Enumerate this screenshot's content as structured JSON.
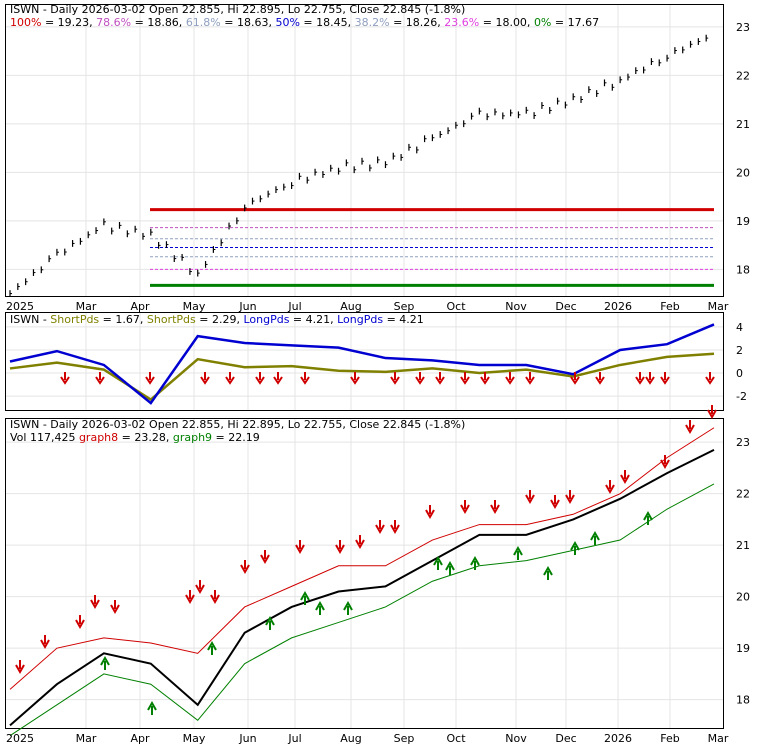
{
  "panel1": {
    "title": "ISWN - Daily 2026-03-02 Open 22.855, Hi 22.895, Lo 22.755, Close 22.845 (-1.8%)",
    "fib_levels": [
      {
        "label": "100%",
        "value_text": " = 19.23, ",
        "value": 19.23,
        "color": "#d00000",
        "dash": false
      },
      {
        "label": "78.6%",
        "value_text": " = 18.86, ",
        "value": 18.86,
        "color": "#c050c0",
        "dash": true
      },
      {
        "label": "61.8%",
        "value_text": " = 18.63, ",
        "value": 18.63,
        "color": "#90a0c0",
        "dash": true
      },
      {
        "label": "50%",
        "value_text": " = 18.45, ",
        "value": 18.45,
        "color": "#0000d0",
        "dash": true
      },
      {
        "label": "38.2%",
        "value_text": " = 18.26, ",
        "value": 18.26,
        "color": "#90a0c0",
        "dash": true
      },
      {
        "label": "23.6%",
        "value_text": " = 18.00, ",
        "value": 18.0,
        "color": "#e040e0",
        "dash": true
      },
      {
        "label": "0%",
        "value_text": " = 17.67",
        "value": 17.67,
        "color": "#008000",
        "dash": false
      }
    ],
    "yticks": [
      "18",
      "19",
      "20",
      "21",
      "22",
      "23"
    ]
  },
  "panel2": {
    "title_prefix": "ISWN - ",
    "items": [
      {
        "text": "ShortPds",
        "color": "#808000"
      },
      {
        "text": " = 1.67, ",
        "color": "#000000"
      },
      {
        "text": "ShortPds",
        "color": "#808000"
      },
      {
        "text": " = 2.29, ",
        "color": "#000000"
      },
      {
        "text": "LongPds",
        "color": "#0000d0"
      },
      {
        "text": " = 4.21, ",
        "color": "#000000"
      },
      {
        "text": "LongPds",
        "color": "#0000d0"
      },
      {
        "text": " = 4.21",
        "color": "#000000"
      }
    ],
    "yticks": [
      "-2",
      "0",
      "2",
      "4"
    ]
  },
  "panel3": {
    "title": "ISWN - Daily 2026-03-02 Open 22.855, Hi 22.895, Lo 22.755, Close 22.845 (-1.8%)",
    "vol_text": "Vol 117,425 ",
    "graph8_label": "graph8",
    "graph8_value": " = 23.28, ",
    "graph9_label": "graph9",
    "graph9_value": " = 22.19",
    "yticks": [
      "18",
      "19",
      "20",
      "21",
      "22",
      "23"
    ]
  },
  "xaxis": {
    "labels": [
      "2025",
      "Mar",
      "Apr",
      "May",
      "Jun",
      "Jul",
      "Aug",
      "Sep",
      "Oct",
      "Nov",
      "Dec",
      "2026",
      "Feb",
      "Mar"
    ]
  },
  "colors": {
    "up": "#008000",
    "down": "#d00000",
    "price": "#000000",
    "short": "#808000",
    "long": "#0000d0"
  },
  "chart_data": [
    {
      "type": "line",
      "title": "ISWN - Daily 2026-03-02 Open 22.855, Hi 22.895, Lo 22.755, Close 22.845 (-1.8%)",
      "x": [
        "2025-01",
        "2025-02",
        "2025-03",
        "2025-04-01",
        "2025-04-08",
        "2025-05",
        "2025-06",
        "2025-07",
        "2025-08",
        "2025-09",
        "2025-10",
        "2025-11",
        "2025-12",
        "2026-01",
        "2026-02",
        "2026-03"
      ],
      "series": [
        {
          "values": [
            17.5,
            18.3,
            18.9,
            18.7,
            17.9,
            19.3,
            19.8,
            20.1,
            20.2,
            20.7,
            21.2,
            21.2,
            21.5,
            21.9,
            22.4,
            22.85
          ]
        }
      ],
      "ylim": [
        17.45,
        23.45
      ]
    },
    {
      "type": "line",
      "series": [
        {
          "name": "ShortPds",
          "values": [
            0.4,
            0.9,
            0.3,
            -2.3,
            1.2,
            0.5,
            0.6,
            0.2,
            0.1,
            0.4,
            0.0,
            0.3,
            -0.3,
            0.7,
            1.4,
            1.67
          ]
        },
        {
          "name": "LongPds",
          "values": [
            1.0,
            1.9,
            0.7,
            -2.6,
            3.2,
            2.6,
            2.4,
            2.2,
            1.3,
            1.1,
            0.7,
            0.7,
            -0.1,
            2.0,
            2.5,
            4.21
          ]
        }
      ],
      "ylim": [
        -3.2,
        5.2
      ]
    },
    {
      "type": "line",
      "series": [
        {
          "name": "graph8",
          "values": [
            18.2,
            19.0,
            19.2,
            19.1,
            18.9,
            19.8,
            20.2,
            20.6,
            20.6,
            21.1,
            21.4,
            21.4,
            21.6,
            22.0,
            22.7,
            23.28
          ]
        },
        {
          "name": "graph9",
          "values": [
            17.3,
            17.9,
            18.5,
            18.3,
            17.6,
            18.7,
            19.2,
            19.5,
            19.8,
            20.3,
            20.6,
            20.7,
            20.9,
            21.1,
            21.7,
            22.19
          ]
        }
      ],
      "ylim": [
        17.45,
        23.45
      ]
    }
  ]
}
